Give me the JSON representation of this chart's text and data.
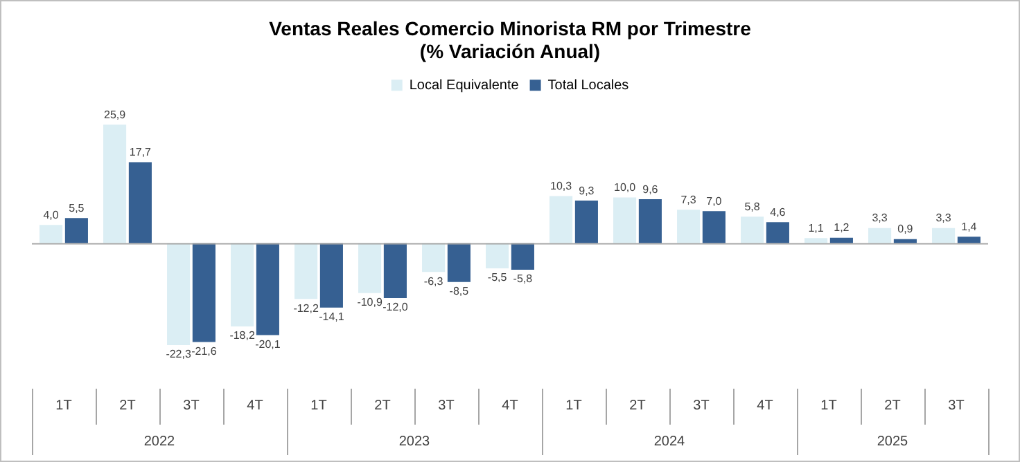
{
  "chart_data": {
    "type": "bar",
    "title": "Ventas Reales Comercio Minorista RM por Trimestre\n(% Variación Anual)",
    "categories": [
      "1T",
      "2T",
      "3T",
      "4T",
      "1T",
      "2T",
      "3T",
      "4T",
      "1T",
      "2T",
      "3T",
      "4T",
      "1T",
      "2T",
      "3T"
    ],
    "annotations": [
      "2022",
      "2023",
      "2024",
      "2025"
    ],
    "series": [
      {
        "name": "Local Equivalente",
        "color": "#dbeef4",
        "values": [
          4.0,
          25.9,
          -22.3,
          -18.2,
          -12.2,
          -10.9,
          -6.3,
          -5.5,
          10.3,
          10.0,
          7.3,
          5.8,
          1.1,
          3.3,
          3.3
        ],
        "value_labels": [
          "4,0",
          "25,9",
          "-22,3",
          "-18,2",
          "-12,2",
          "-10,9",
          "-6,3",
          "-5,5",
          "10,3",
          "10,0",
          "7,3",
          "5,8",
          "1,1",
          "3,3",
          "3,3"
        ]
      },
      {
        "name": "Total Locales",
        "color": "#366092",
        "values": [
          5.5,
          17.7,
          -21.6,
          -20.1,
          -14.1,
          -12.0,
          -8.5,
          -5.8,
          9.3,
          9.6,
          7.0,
          4.6,
          1.2,
          0.9,
          1.4
        ],
        "value_labels": [
          "5,5",
          "17,7",
          "-21,6",
          "-20,1",
          "-14,1",
          "-12,0",
          "-8,5",
          "-5,8",
          "9,3",
          "9,6",
          "7,0",
          "4,6",
          "1,2",
          "0,9",
          "1,4"
        ]
      }
    ],
    "legend": "top"
  }
}
